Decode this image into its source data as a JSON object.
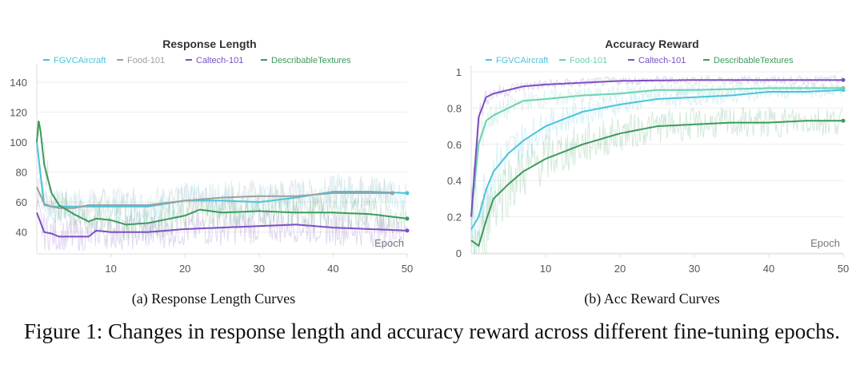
{
  "chart_data": [
    {
      "type": "line",
      "title": "Response Length",
      "xlabel": "Epoch",
      "ylabel": "",
      "xlim": [
        0,
        50
      ],
      "ylim": [
        26,
        148
      ],
      "xticks": [
        10,
        20,
        30,
        40,
        50
      ],
      "yticks": [
        40,
        60,
        80,
        100,
        120,
        140
      ],
      "grid": true,
      "legend": "top-center",
      "series": [
        {
          "name": "FGVCAircraft",
          "color": "#4cc3d9",
          "x": [
            0,
            1,
            2,
            3,
            5,
            7,
            10,
            15,
            20,
            25,
            30,
            35,
            40,
            45,
            50
          ],
          "y": [
            100,
            58,
            57,
            57,
            57,
            57,
            57,
            57,
            61,
            61,
            60,
            63,
            67,
            67,
            66
          ]
        },
        {
          "name": "Food-101",
          "color": "#9e9e9e",
          "x": [
            0,
            1,
            2,
            3,
            5,
            7,
            10,
            15,
            20,
            25,
            30,
            35,
            40,
            45,
            48
          ],
          "y": [
            70,
            59,
            57,
            56,
            56,
            58,
            58,
            58,
            61,
            63,
            64,
            64,
            66,
            66,
            66
          ]
        },
        {
          "name": "Caltech-101",
          "color": "#7b4fc0",
          "x": [
            0,
            1,
            2,
            3,
            5,
            7,
            8,
            10,
            15,
            20,
            25,
            30,
            35,
            40,
            45,
            50
          ],
          "y": [
            53,
            40,
            39,
            37,
            37,
            37,
            41,
            40,
            40,
            42,
            43,
            44,
            45,
            43,
            42,
            41
          ]
        },
        {
          "name": "DescribableTextures",
          "color": "#3c9a5c",
          "x": [
            0,
            0.3,
            1,
            2,
            3,
            5,
            7,
            8,
            10,
            12,
            15,
            20,
            22,
            25,
            30,
            35,
            40,
            45,
            50
          ],
          "y": [
            100,
            117,
            85,
            66,
            58,
            52,
            47,
            49,
            48,
            45,
            46,
            51,
            55,
            53,
            54,
            53,
            53,
            52,
            49
          ]
        }
      ]
    },
    {
      "type": "line",
      "title": "Accuracy Reward",
      "xlabel": "Epoch",
      "ylabel": "",
      "xlim": [
        0,
        50
      ],
      "ylim": [
        0,
        1
      ],
      "xticks": [
        10,
        20,
        30,
        40,
        50
      ],
      "yticks": [
        0,
        0.2,
        0.4,
        0.6,
        0.8,
        1
      ],
      "grid": true,
      "legend": "top-center",
      "series": [
        {
          "name": "FGVCAircraft",
          "color": "#4cc3d9",
          "x": [
            0,
            1,
            2,
            3,
            5,
            7,
            10,
            15,
            20,
            25,
            30,
            35,
            40,
            45,
            50
          ],
          "y": [
            0.13,
            0.2,
            0.35,
            0.45,
            0.55,
            0.62,
            0.7,
            0.78,
            0.82,
            0.85,
            0.86,
            0.87,
            0.89,
            0.89,
            0.9
          ]
        },
        {
          "name": "Food-101",
          "color": "#6dcfb4",
          "x": [
            0,
            1,
            2,
            3,
            5,
            7,
            10,
            15,
            20,
            25,
            30,
            40,
            50
          ],
          "y": [
            0.2,
            0.6,
            0.73,
            0.76,
            0.8,
            0.84,
            0.85,
            0.87,
            0.88,
            0.9,
            0.9,
            0.91,
            0.91
          ]
        },
        {
          "name": "Caltech-101",
          "color": "#7b4fc0",
          "x": [
            0,
            1,
            2,
            3,
            5,
            7,
            10,
            15,
            20,
            30,
            40,
            50
          ],
          "y": [
            0.2,
            0.75,
            0.86,
            0.88,
            0.9,
            0.92,
            0.93,
            0.94,
            0.95,
            0.955,
            0.955,
            0.955
          ]
        },
        {
          "name": "DescribableTextures",
          "color": "#3c9a5c",
          "x": [
            0,
            1,
            2,
            3,
            5,
            7,
            10,
            15,
            20,
            25,
            30,
            35,
            40,
            45,
            50
          ],
          "y": [
            0.07,
            0.04,
            0.18,
            0.3,
            0.38,
            0.45,
            0.52,
            0.6,
            0.66,
            0.7,
            0.71,
            0.72,
            0.72,
            0.73,
            0.73
          ]
        }
      ]
    }
  ],
  "captions": {
    "a": "(a) Response Length Curves",
    "b": "(b) Acc Reward Curves",
    "figure": "Figure 1: Changes in response length and accuracy reward across different fine-tuning epochs."
  }
}
